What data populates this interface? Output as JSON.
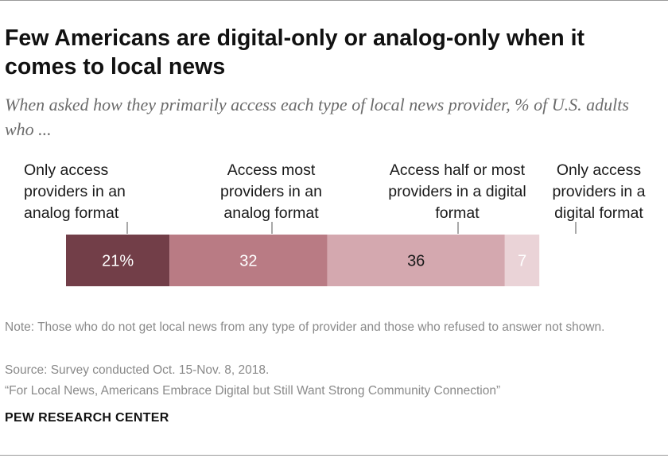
{
  "header": {
    "title": "Few Americans are digital-only or analog-only when it comes to local news",
    "subtitle": "When asked how they primarily access each type of local news provider, % of U.S. adults who ..."
  },
  "chart_data": {
    "type": "bar",
    "orientation": "horizontal-stacked",
    "categories": [
      "Only access providers in an analog format",
      "Access most providers in an analog format",
      "Access half or most providers in a digital format",
      "Only access providers in a digital format"
    ],
    "values": [
      21,
      32,
      36,
      7
    ],
    "value_labels": [
      "21%",
      "32",
      "36",
      "7"
    ],
    "colors": [
      "#723e48",
      "#b97b84",
      "#d4a8af",
      "#ead3d7"
    ],
    "label_colors": [
      "#ffffff",
      "#ffffff",
      "#1a1a1a",
      "#ffffff"
    ],
    "title": "",
    "xlabel": "",
    "ylabel": ""
  },
  "footer": {
    "note": "Note: Those who do not get local news from any type of provider and those who refused to answer not shown.",
    "source": "Source: Survey conducted Oct. 15-Nov. 8, 2018.",
    "report": "“For Local News, Americans Embrace Digital but Still Want Strong Community Connection”",
    "organization": "PEW RESEARCH CENTER"
  }
}
